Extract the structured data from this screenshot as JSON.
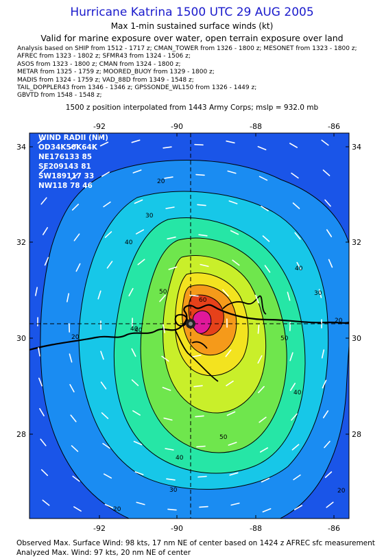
{
  "header": {
    "title": "Hurricane Katrina 1500 UTC 29 AUG 2005",
    "subtitle": "Max 1-min sustained surface winds (kt)",
    "valid_line": "Valid for marine exposure over water, open terrain exposure over land",
    "analysis_lines": [
      "Analysis based on  SHIP from 1512 - 1717 z;  CMAN_TOWER from 1326 - 1800 z;  MESONET from 1323 - 1800 z;",
      "AFREC from 1323 - 1802 z;  SFMR43 from 1324 - 1506 z;",
      "ASOS from 1323 - 1800 z;  CMAN from 1324 - 1800 z;",
      "METAR from 1325 - 1759 z;  MOORED_BUOY from 1329 - 1800 z;",
      "MADIS from 1324 - 1759 z;  VAD_88D from 1349 - 1548 z;",
      "TAIL_DOPPLER43 from 1346 - 1346 z;  GPSSONDE_WL150 from 1326 - 1449 z;",
      "GBVTD from 1548 - 1548 z;"
    ],
    "interp_line": "1500 z position interpolated from 1443 Army Corps; mslp = 932.0 mb"
  },
  "map": {
    "x_ticks": [
      "-92",
      "-90",
      "-88",
      "-86"
    ],
    "y_ticks": [
      "34",
      "32",
      "30",
      "28"
    ],
    "wind_radii": [
      "WIND RADII (NM)",
      "OD34K50K64K",
      "NE176133 85",
      "SE209143 81",
      "SW189117 33",
      "NW118 78 46"
    ],
    "contour_labels": [
      "20",
      "20",
      "30",
      "40",
      "50",
      "40",
      "60",
      "40",
      "30",
      "20",
      "50",
      "40",
      "20",
      "30",
      "40",
      "50",
      "40",
      "20"
    ]
  },
  "footer": {
    "observed": "Observed Max. Surface Wind: 98 kts, 17 nm NE of center based on 1424 z AFREC sfc measurement",
    "analyzed": "Analyzed Max. Wind: 97 kts, 20 nm NE of center"
  },
  "colors": {
    "outer_blue": "#1a55e8",
    "band_20": "#1a8cf2",
    "band_30": "#17c7e8",
    "band_40": "#26e6a6",
    "band_50": "#6fe64d",
    "band_60": "#c9ef2a",
    "band_70": "#f3e31f",
    "band_80": "#f59a1a",
    "band_90": "#e6411a",
    "core": "#e0189a"
  }
}
